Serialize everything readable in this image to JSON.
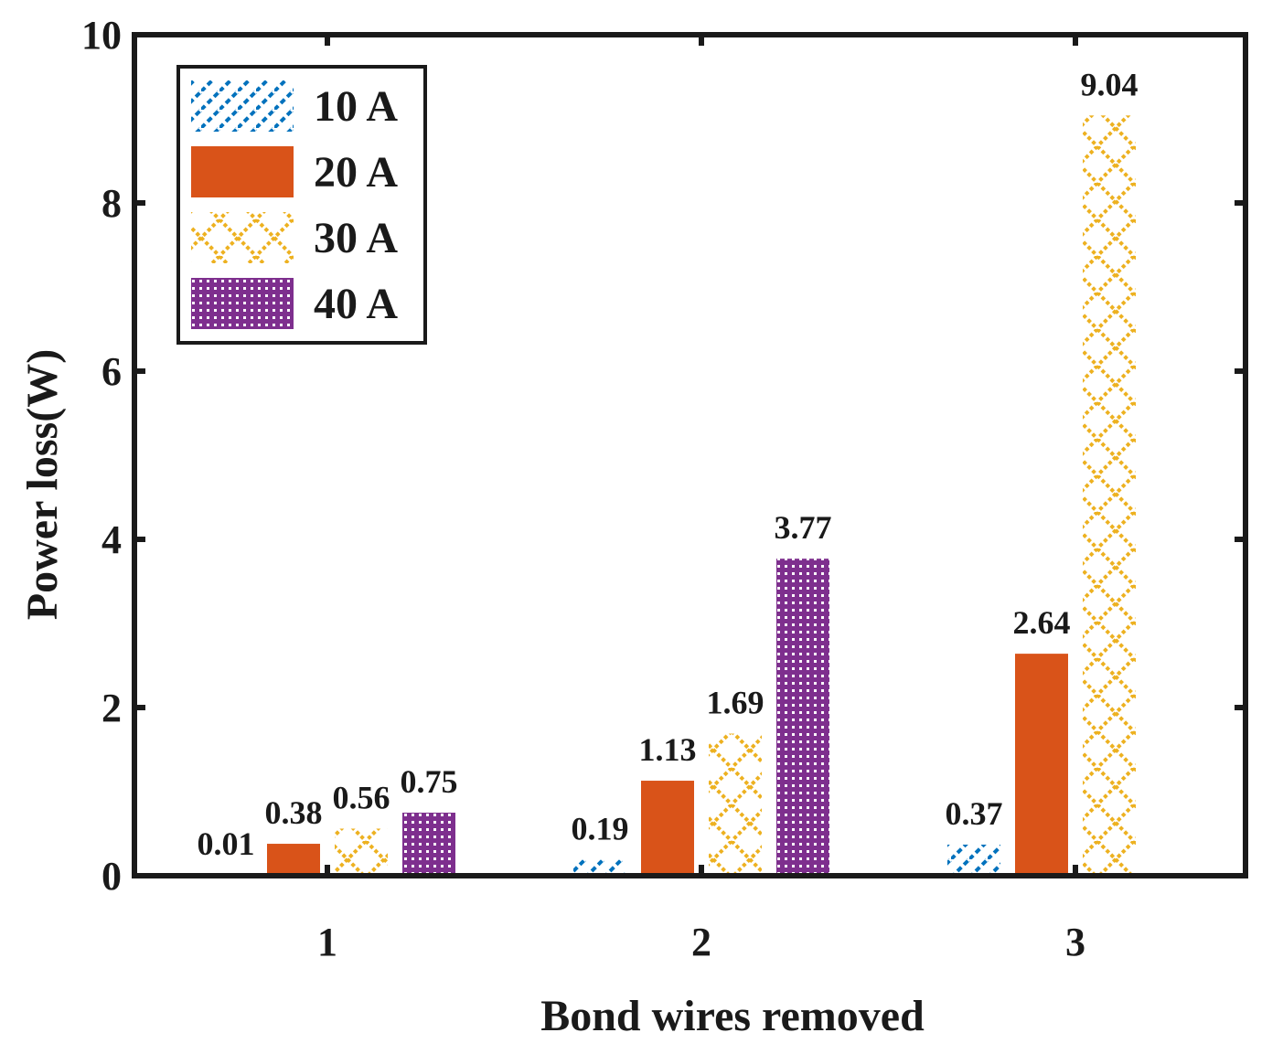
{
  "chart_data": {
    "type": "bar",
    "title": "",
    "xlabel": "Bond wires removed",
    "ylabel": "Power loss(W)",
    "ylim": [
      0,
      10
    ],
    "yticks": [
      "0",
      "2",
      "4",
      "6",
      "8",
      "10"
    ],
    "categories": [
      "1",
      "2",
      "3"
    ],
    "legend_position": "top-left",
    "series": [
      {
        "name": "10 A",
        "pattern": "diagonal",
        "color": "#0072BD",
        "values": [
          0.01,
          0.19,
          0.37
        ],
        "labels": [
          "0.01",
          "0.19",
          "0.37"
        ]
      },
      {
        "name": "20 A",
        "pattern": "solid",
        "color": "#D95319",
        "values": [
          0.38,
          1.13,
          2.64
        ],
        "labels": [
          "0.38",
          "1.13",
          "2.64"
        ]
      },
      {
        "name": "30 A",
        "pattern": "cross",
        "color": "#EDB120",
        "values": [
          0.56,
          1.69,
          9.04
        ],
        "labels": [
          "0.56",
          "1.69",
          "9.04"
        ]
      },
      {
        "name": "40 A",
        "pattern": "dots",
        "color": "#7E2F8E",
        "values": [
          0.75,
          3.77,
          0
        ],
        "labels": [
          "0.75",
          "3.77",
          ""
        ]
      }
    ]
  }
}
